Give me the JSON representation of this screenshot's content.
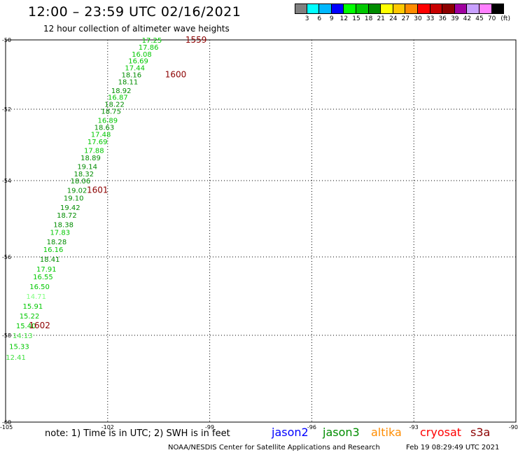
{
  "title": "12:00 – 23:59 UTC 02/16/2021",
  "subtitle": "12 hour collection of altimeter wave heights",
  "legend": {
    "colors": [
      "#808080",
      "#00ffff",
      "#00b8ff",
      "#0000ff",
      "#00ff00",
      "#00c800",
      "#008c00",
      "#ffff00",
      "#ffc800",
      "#ff8c00",
      "#ff0000",
      "#c80000",
      "#8c0000",
      "#a000a0",
      "#c8a0ff",
      "#ff80ff",
      "#000000"
    ],
    "labels": [
      "3",
      "6",
      "9",
      "12",
      "15",
      "18",
      "21",
      "24",
      "27",
      "30",
      "33",
      "36",
      "39",
      "42",
      "45",
      "70",
      "(ft)"
    ]
  },
  "axes": {
    "lat_labels": [
      "-50",
      "-52",
      "-54",
      "-56",
      "-58",
      "-60"
    ],
    "lon_labels": [
      "-105",
      "-102",
      "-99",
      "-96",
      "-93",
      "-90"
    ]
  },
  "chart_data": {
    "type": "scatter",
    "xlim": [
      -105,
      -90
    ],
    "ylim": [
      -60,
      -50
    ],
    "grid": true,
    "points": [
      {
        "lon": -100.7,
        "lat": -50.0,
        "v": "17.25",
        "c": "#00c800"
      },
      {
        "lon": -100.8,
        "lat": -50.2,
        "v": "17.86",
        "c": "#00c800"
      },
      {
        "lon": -101.0,
        "lat": -50.4,
        "v": "16.08",
        "c": "#00c800"
      },
      {
        "lon": -101.1,
        "lat": -50.6,
        "v": "16.69",
        "c": "#00c800"
      },
      {
        "lon": -101.2,
        "lat": -50.8,
        "v": "17.44",
        "c": "#00c800"
      },
      {
        "lon": -101.3,
        "lat": -51.0,
        "v": "18.16",
        "c": "#008c00"
      },
      {
        "lon": -101.4,
        "lat": -51.2,
        "v": "18.11",
        "c": "#008c00"
      },
      {
        "lon": -101.6,
        "lat": -51.45,
        "v": "18.92",
        "c": "#008c00"
      },
      {
        "lon": -101.7,
        "lat": -51.65,
        "v": "16.87",
        "c": "#00c800"
      },
      {
        "lon": -101.8,
        "lat": -51.85,
        "v": "18.22",
        "c": "#008c00"
      },
      {
        "lon": -101.9,
        "lat": -52.05,
        "v": "18.75",
        "c": "#008c00"
      },
      {
        "lon": -102.0,
        "lat": -52.3,
        "v": "16.89",
        "c": "#00c800"
      },
      {
        "lon": -102.1,
        "lat": -52.5,
        "v": "18.63",
        "c": "#008c00"
      },
      {
        "lon": -102.2,
        "lat": -52.7,
        "v": "17.48",
        "c": "#00c800"
      },
      {
        "lon": -102.3,
        "lat": -52.9,
        "v": "17.69",
        "c": "#00c800"
      },
      {
        "lon": -102.4,
        "lat": -53.15,
        "v": "17.88",
        "c": "#00c800"
      },
      {
        "lon": -102.5,
        "lat": -53.35,
        "v": "18.89",
        "c": "#008c00"
      },
      {
        "lon": -102.6,
        "lat": -53.6,
        "v": "19.14",
        "c": "#008c00"
      },
      {
        "lon": -102.7,
        "lat": -53.8,
        "v": "18.32",
        "c": "#008c00"
      },
      {
        "lon": -102.8,
        "lat": -54.0,
        "v": "18.06",
        "c": "#008c00"
      },
      {
        "lon": -102.9,
        "lat": -54.25,
        "v": "19.02",
        "c": "#008c00"
      },
      {
        "lon": -103.0,
        "lat": -54.45,
        "v": "19.10",
        "c": "#008c00"
      },
      {
        "lon": -103.1,
        "lat": -54.7,
        "v": "19.42",
        "c": "#008c00"
      },
      {
        "lon": -103.2,
        "lat": -54.9,
        "v": "18.72",
        "c": "#008c00"
      },
      {
        "lon": -103.3,
        "lat": -55.15,
        "v": "18.38",
        "c": "#008c00"
      },
      {
        "lon": -103.4,
        "lat": -55.35,
        "v": "17.83",
        "c": "#00c800"
      },
      {
        "lon": -103.5,
        "lat": -55.6,
        "v": "18.28",
        "c": "#008c00"
      },
      {
        "lon": -103.6,
        "lat": -55.8,
        "v": "16.16",
        "c": "#00c800"
      },
      {
        "lon": -103.7,
        "lat": -56.05,
        "v": "18.41",
        "c": "#008c00"
      },
      {
        "lon": -103.8,
        "lat": -56.3,
        "v": "17.91",
        "c": "#00c800"
      },
      {
        "lon": -103.9,
        "lat": -56.5,
        "v": "16.55",
        "c": "#00c800"
      },
      {
        "lon": -104.0,
        "lat": -56.75,
        "v": "16.50",
        "c": "#00c800"
      },
      {
        "lon": -104.1,
        "lat": -57.0,
        "v": "14.71",
        "c": "#80ff80"
      },
      {
        "lon": -104.2,
        "lat": -57.25,
        "v": "15.91",
        "c": "#00c800"
      },
      {
        "lon": -104.3,
        "lat": -57.5,
        "v": "15.22",
        "c": "#00c800"
      },
      {
        "lon": -104.4,
        "lat": -57.75,
        "v": "15.40",
        "c": "#00c800"
      },
      {
        "lon": -104.5,
        "lat": -58.0,
        "v": "14.13",
        "c": "#40e040"
      },
      {
        "lon": -104.6,
        "lat": -58.25,
        "v": "15.33",
        "c": "#00c800"
      },
      {
        "lon": -104.7,
        "lat": -58.5,
        "v": "12.41",
        "c": "#40e040"
      }
    ],
    "time_labels": [
      {
        "lon": -99.4,
        "lat": -50.0,
        "t": "1559"
      },
      {
        "lon": -100.0,
        "lat": -51.0,
        "t": "1600"
      },
      {
        "lon": -102.3,
        "lat": -54.25,
        "t": "1601"
      },
      {
        "lon": -104.0,
        "lat": -57.75,
        "t": "1602"
      }
    ]
  },
  "note": "note: 1) Time is in UTC; 2) SWH is in feet",
  "satellites": [
    {
      "name": "jason2",
      "color": "#0000ff"
    },
    {
      "name": "jason3",
      "color": "#008c00"
    },
    {
      "name": "altika",
      "color": "#ff8c00"
    },
    {
      "name": "cryosat",
      "color": "#ff0000"
    },
    {
      "name": "s3a",
      "color": "#8c0000"
    }
  ],
  "credit": "NOAA/NESDIS Center for Satellite Applications and Research",
  "timestamp": "Feb 19 08:29:49 UTC 2021"
}
